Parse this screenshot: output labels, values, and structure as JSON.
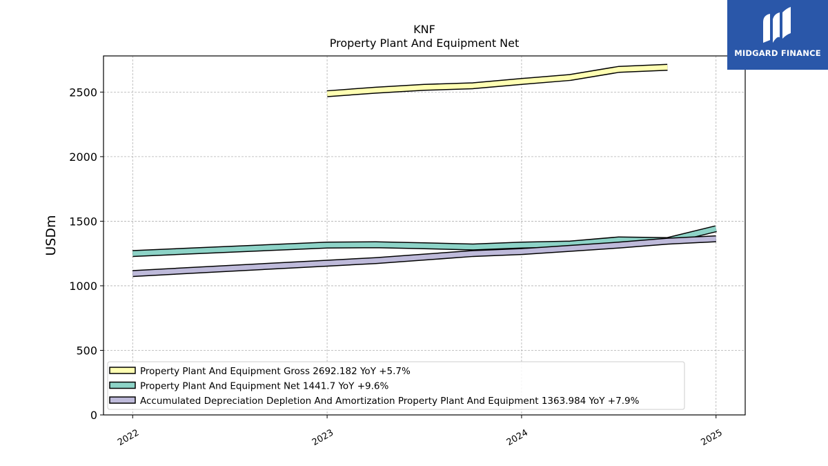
{
  "chart_data": {
    "type": "line",
    "title": "KNF",
    "subtitle": "Property Plant And Equipment Net",
    "ylabel": "USDm",
    "xlabel": "",
    "ylim": [
      0,
      2780
    ],
    "xlim": [
      2021.85,
      2025.15
    ],
    "yticks": [
      0,
      500,
      1000,
      1500,
      2000,
      2500
    ],
    "xticks": [
      {
        "value": 2022,
        "label": "2022"
      },
      {
        "value": 2023,
        "label": "2023"
      },
      {
        "value": 2024,
        "label": "2024"
      },
      {
        "value": 2025,
        "label": "2025"
      }
    ],
    "grid": true,
    "legend_position": "lower-left",
    "series": [
      {
        "name": "Property Plant And Equipment Gross",
        "legend": "Property Plant And Equipment Gross  2692.182 YoY +5.7%",
        "color": "#ffffb3",
        "x": [
          2023.0,
          2023.25,
          2023.5,
          2023.75,
          2024.0,
          2024.25,
          2024.5,
          2024.75
        ],
        "y": [
          2487,
          2515,
          2537,
          2549,
          2582,
          2613,
          2676,
          2692
        ]
      },
      {
        "name": "Property Plant And Equipment Net",
        "legend": "Property Plant And Equipment Net  1441.7 YoY +9.6%",
        "color": "#8dd3c7",
        "x": [
          2022.0,
          2023.0,
          2023.25,
          2023.5,
          2023.75,
          2024.0,
          2024.25,
          2024.5,
          2024.75,
          2025.0
        ],
        "y": [
          1250,
          1315,
          1318,
          1310,
          1300,
          1315,
          1323,
          1355,
          1350,
          1441.7
        ]
      },
      {
        "name": "Accumulated Depreciation Depletion And Amortization Property Plant And Equipment",
        "legend": "Accumulated Depreciation Depletion And Amortization Property Plant And Equipment  1363.984 YoY +7.9%",
        "color": "#bebada",
        "x": [
          2022.0,
          2023.0,
          2023.25,
          2023.5,
          2023.75,
          2024.0,
          2024.25,
          2024.5,
          2024.75,
          2025.0
        ],
        "y": [
          1095,
          1175,
          1195,
          1222,
          1250,
          1265,
          1290,
          1315,
          1345,
          1363.984
        ]
      }
    ]
  },
  "logo": {
    "text": "MIDGARD FINANCE",
    "background": "#2a57a9"
  }
}
